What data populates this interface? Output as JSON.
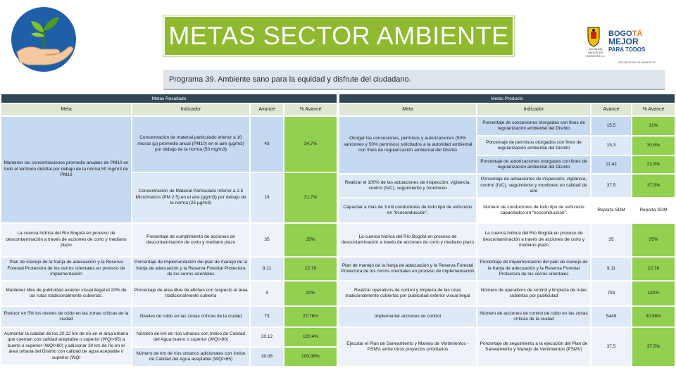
{
  "title": "METAS SECTOR AMBIENTE",
  "program": "Programa 39. Ambiente sano para la equidad y disfrute del ciudadano.",
  "logo": {
    "alcaldia": "ALCALDÍA MAYOR DE BOGOTÁ D.C.",
    "bogota_line1_a": "BOGO",
    "bogota_line1_b": "TÁ",
    "bogota_line2": "MEJOR",
    "bogota_line3": "PARA TODOS",
    "secretaria": "SECRETARÍA DE AMBIENTE"
  },
  "colors": {
    "title_bg": "#8fb92e",
    "section_bg": "#2f4654",
    "percent_bg": "#92d050"
  },
  "resultado": {
    "section_label": "Metas Resultado",
    "headers": {
      "meta": "Meta",
      "indicador": "Indicador",
      "avance": "Avance",
      "pct": "% Avance"
    },
    "rows": [
      {
        "meta": "Mantener las concentraciones promedio anuales de PM10 en todo el territorio distrital por debajo de la norma 50 mg/m3 de PM10",
        "indicador": "Concentración de material particulado inferior a 10 micras (µ) promedio anual (PM10) en el aire (µg/m3) por debajo de la norma (50 mg/m3)",
        "avance": "43",
        "pct": "34,7%"
      },
      {
        "meta": "",
        "indicador": "Concentración de Material Particulado Inferior a 2.5 Micrómetros (PM 2.5) en el aire (µg/m3) por debajo de la norma (25 µg/m3)",
        "avance": "19",
        "pct": "31,7%"
      },
      {
        "meta": "La cuenca hídrica del Río Bogotá en proceso de descontaminación a través de acciones de corto y mediano plazo",
        "indicador": "Porcentaje de cumplimiento de acciones de descontaminación de corto y mediano plazo",
        "avance": "35",
        "pct": "35%"
      },
      {
        "meta": "Plan de manejo de la franja de adecuación y la Reserva Forestal Protectora de los cerros orientales en proceso de implementación",
        "indicador": "Porcentaje de implementación del plan de manejo de la franja de adecuación y la Reserva Forestal Protectora de los cerros orientales",
        "avance": "9,11",
        "pct": "22,78"
      },
      {
        "meta": "Mantener libre de publicidad exterior visual ilegal el 20% de las rutas tradicionalmente cubiertas.",
        "indicador": "Porcentaje de área libre de afiches con respecto al área tradicionalmente cubierta",
        "avance": "4",
        "pct": "20%"
      },
      {
        "meta": "Reducir en 5% los niveles de ruido en las zonas críticas de la ciudad",
        "indicador": "Niveles de ruido en las zonas críticas de la ciudad",
        "avance": "73",
        "pct": "27,78%"
      },
      {
        "meta": "Aumentar la calidad de los 20,12 km de río en el área urbana que cuentan con calidad aceptable o superior (WQI>65) a bueno o superior (WQI>80) y adicionar 30 km de río en el área urbana del Distrito con calidad de agua aceptable o superior (WQI",
        "indicador": "Número de km de ríos urbanos con índice de Calidad del Agua bueno o superior (WQI>80)",
        "avance": "20,12",
        "pct": "120,4%"
      },
      {
        "meta": "",
        "indicador": "Número de km de ríos urbanos adicionales con índice de Calidad del Agua aceptable (WQI>65)",
        "avance": "30,06",
        "pct": "100,06%"
      }
    ]
  },
  "producto": {
    "section_label": "Metas Producto",
    "headers": {
      "meta": "Meta",
      "indicador": "Indicador",
      "avance": "Avance",
      "pct": "% Avance"
    },
    "metas": [
      "Otorgar las concesiones, permisos y autorizaciones (50% sanciones y 50% permisos) solicitados a la autoridad ambiental con fines de regularización ambiental del Distrito",
      "Realizar el 100% de las actuaciones de inspección, vigilancia, control (IVC), seguimiento y monitoreo",
      "Capacitar a más de 3 mil conductores de todo tipo de vehículos en “ecoconducción”.",
      "La cuenca hídrica del Río Bogotá en proceso de descontaminación a través de acciones de corto y mediano plazo",
      "Plan de manejo de la franja de adecuación y la Reserva Forestal Protectora de los cerros orientales en proceso de implementación",
      "Realizar operativos de control y limpieza de las rutas tradicionalmente cubiertas por publicidad exterior visual ilegal",
      "Implementar acciones de control",
      "Ejecutar el Plan de Saneamiento y Manejo de Vertimientos - PSMV, entre otros proyectos prioritarios"
    ],
    "rows": [
      {
        "indicador": "Porcentaje de concesiones otorgadas con fines de regularización ambiental del Distrito",
        "avance": "15,5",
        "pct": "31%"
      },
      {
        "indicador": "Porcentaje de permisos otorgados con fines de regularización ambiental del Distrito",
        "avance": "15,3",
        "pct": "30,6%"
      },
      {
        "indicador": "Porcentaje de autorizaciones otorgadas con fines de regularización ambiental del Distrito",
        "avance": "11,42",
        "pct": "22,8%"
      },
      {
        "indicador": "Porcentaje de actuaciones de inspección, vigilancia, control (IVC), seguimiento y monitoreo en calidad de aire",
        "avance": "37,5",
        "pct": "37,5%"
      },
      {
        "indicador": "Número de conductores de todo tipo de vehículos capacitados en “ecoconducción”.",
        "avance": "Reporta SDM",
        "pct": "Reporta SDM"
      },
      {
        "indicador": "La cuenca hídrica del Río Bogotá en proceso de descontaminación a través de acciones de corto y mediano plazo",
        "avance": "35",
        "pct": "35%"
      },
      {
        "indicador": "Porcentaje de implementación del plan de manejo de la franja de adecuación y la Reserva Forestal Protectora de los cerros orientales",
        "avance": "9,11",
        "pct": "22,78"
      },
      {
        "indicador": "Número de operativos de control y limpieza de rutas cubiertas por publicidad",
        "avance": "793",
        "pct": "132%"
      },
      {
        "indicador": "Número de acciones de control de ruido en las zonas críticas de la ciudad",
        "avance": "5449",
        "pct": "30,96%"
      },
      {
        "indicador": "Porcentaje de seguimiento a la ejecución del Plan de Saneamiento y Manejo de Vertimientos (PSMV)",
        "avance": "37,5",
        "pct": "37,5%"
      }
    ]
  }
}
